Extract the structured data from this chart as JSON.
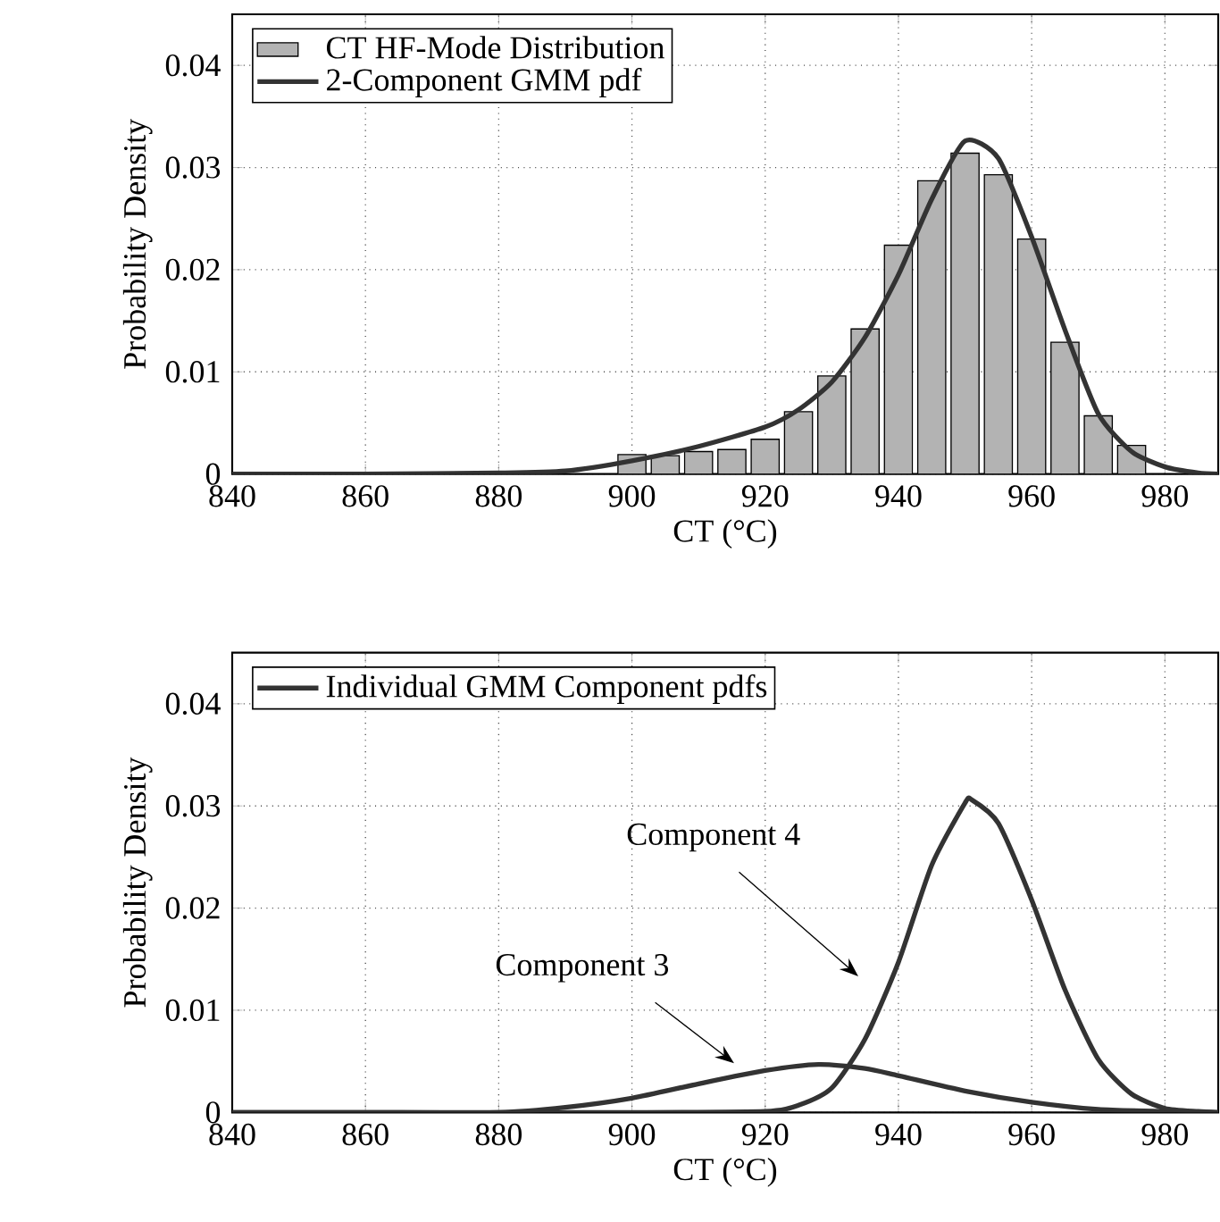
{
  "chart_data": [
    {
      "type": "histogram",
      "xlabel": "CT (°C)",
      "ylabel": "Probability Density",
      "series": [
        {
          "name": "CT HF-Mode Distribution",
          "type": "histogram",
          "color": "#b3b3b3",
          "bins": [
            897.5,
            902.5,
            907.5,
            912.5,
            917.5,
            922.5,
            927.5,
            932.5,
            937.5,
            942.5,
            947.5,
            952.5,
            957.5,
            962.5,
            967.5,
            972.5,
            977.5
          ],
          "values": [
            0.0019,
            0.0018,
            0.0022,
            0.0024,
            0.0034,
            0.0061,
            0.0096,
            0.0142,
            0.0224,
            0.0287,
            0.0314,
            0.0293,
            0.023,
            0.0129,
            0.0057,
            0.0028
          ]
        },
        {
          "name": "2-Component GMM pdf",
          "type": "line",
          "color": "#333333",
          "x": [
            840,
            860,
            880,
            890,
            900,
            910,
            920,
            925,
            930,
            935,
            940,
            945,
            950,
            955,
            960,
            965,
            970,
            975,
            980,
            985,
            988
          ],
          "values": [
            0,
            0,
            0.0001,
            0.0003,
            0.0013,
            0.0027,
            0.0046,
            0.0063,
            0.009,
            0.0134,
            0.0195,
            0.0269,
            0.0326,
            0.0309,
            0.0232,
            0.0141,
            0.0059,
            0.0022,
            0.0007,
            0.0001,
            0
          ]
        }
      ],
      "xlim": [
        840,
        988
      ],
      "ylim": [
        0,
        0.045
      ],
      "xticks": [
        840,
        860,
        880,
        900,
        920,
        940,
        960,
        980
      ],
      "yticks": [
        0,
        0.01,
        0.02,
        0.03,
        0.04
      ],
      "grid": true,
      "legend": "top left"
    },
    {
      "type": "line",
      "xlabel": "CT (°C)",
      "ylabel": "Probability Density",
      "series": [
        {
          "name": "Individual GMM Component pdfs",
          "color": "#333333",
          "x": [
            840,
            860,
            880,
            890,
            900,
            910,
            920,
            928,
            935,
            940,
            950,
            960,
            970,
            980,
            988
          ],
          "values": [
            0,
            0,
            0,
            0.0005,
            0.0014,
            0.0028,
            0.0041,
            0.0047,
            0.0043,
            0.0036,
            0.0021,
            0.001,
            0.0003,
            0.0001,
            0
          ]
        },
        {
          "color": "#333333",
          "x": [
            840,
            900,
            920,
            925,
            930,
            935,
            940,
            945,
            950,
            951,
            955,
            960,
            965,
            970,
            975,
            980,
            985,
            988
          ],
          "values": [
            0,
            0,
            0.0001,
            0.0007,
            0.0024,
            0.0072,
            0.0147,
            0.0242,
            0.0303,
            0.0306,
            0.0283,
            0.0208,
            0.012,
            0.0052,
            0.0018,
            0.0004,
            0.0001,
            0
          ]
        }
      ],
      "annotations": [
        "Component 3",
        "Component 4"
      ],
      "xlim": [
        840,
        988
      ],
      "ylim": [
        0,
        0.045
      ],
      "xticks": [
        840,
        860,
        880,
        900,
        920,
        940,
        960,
        980
      ],
      "yticks": [
        0,
        0.01,
        0.02,
        0.03,
        0.04
      ],
      "grid": true,
      "legend": "top left"
    }
  ]
}
